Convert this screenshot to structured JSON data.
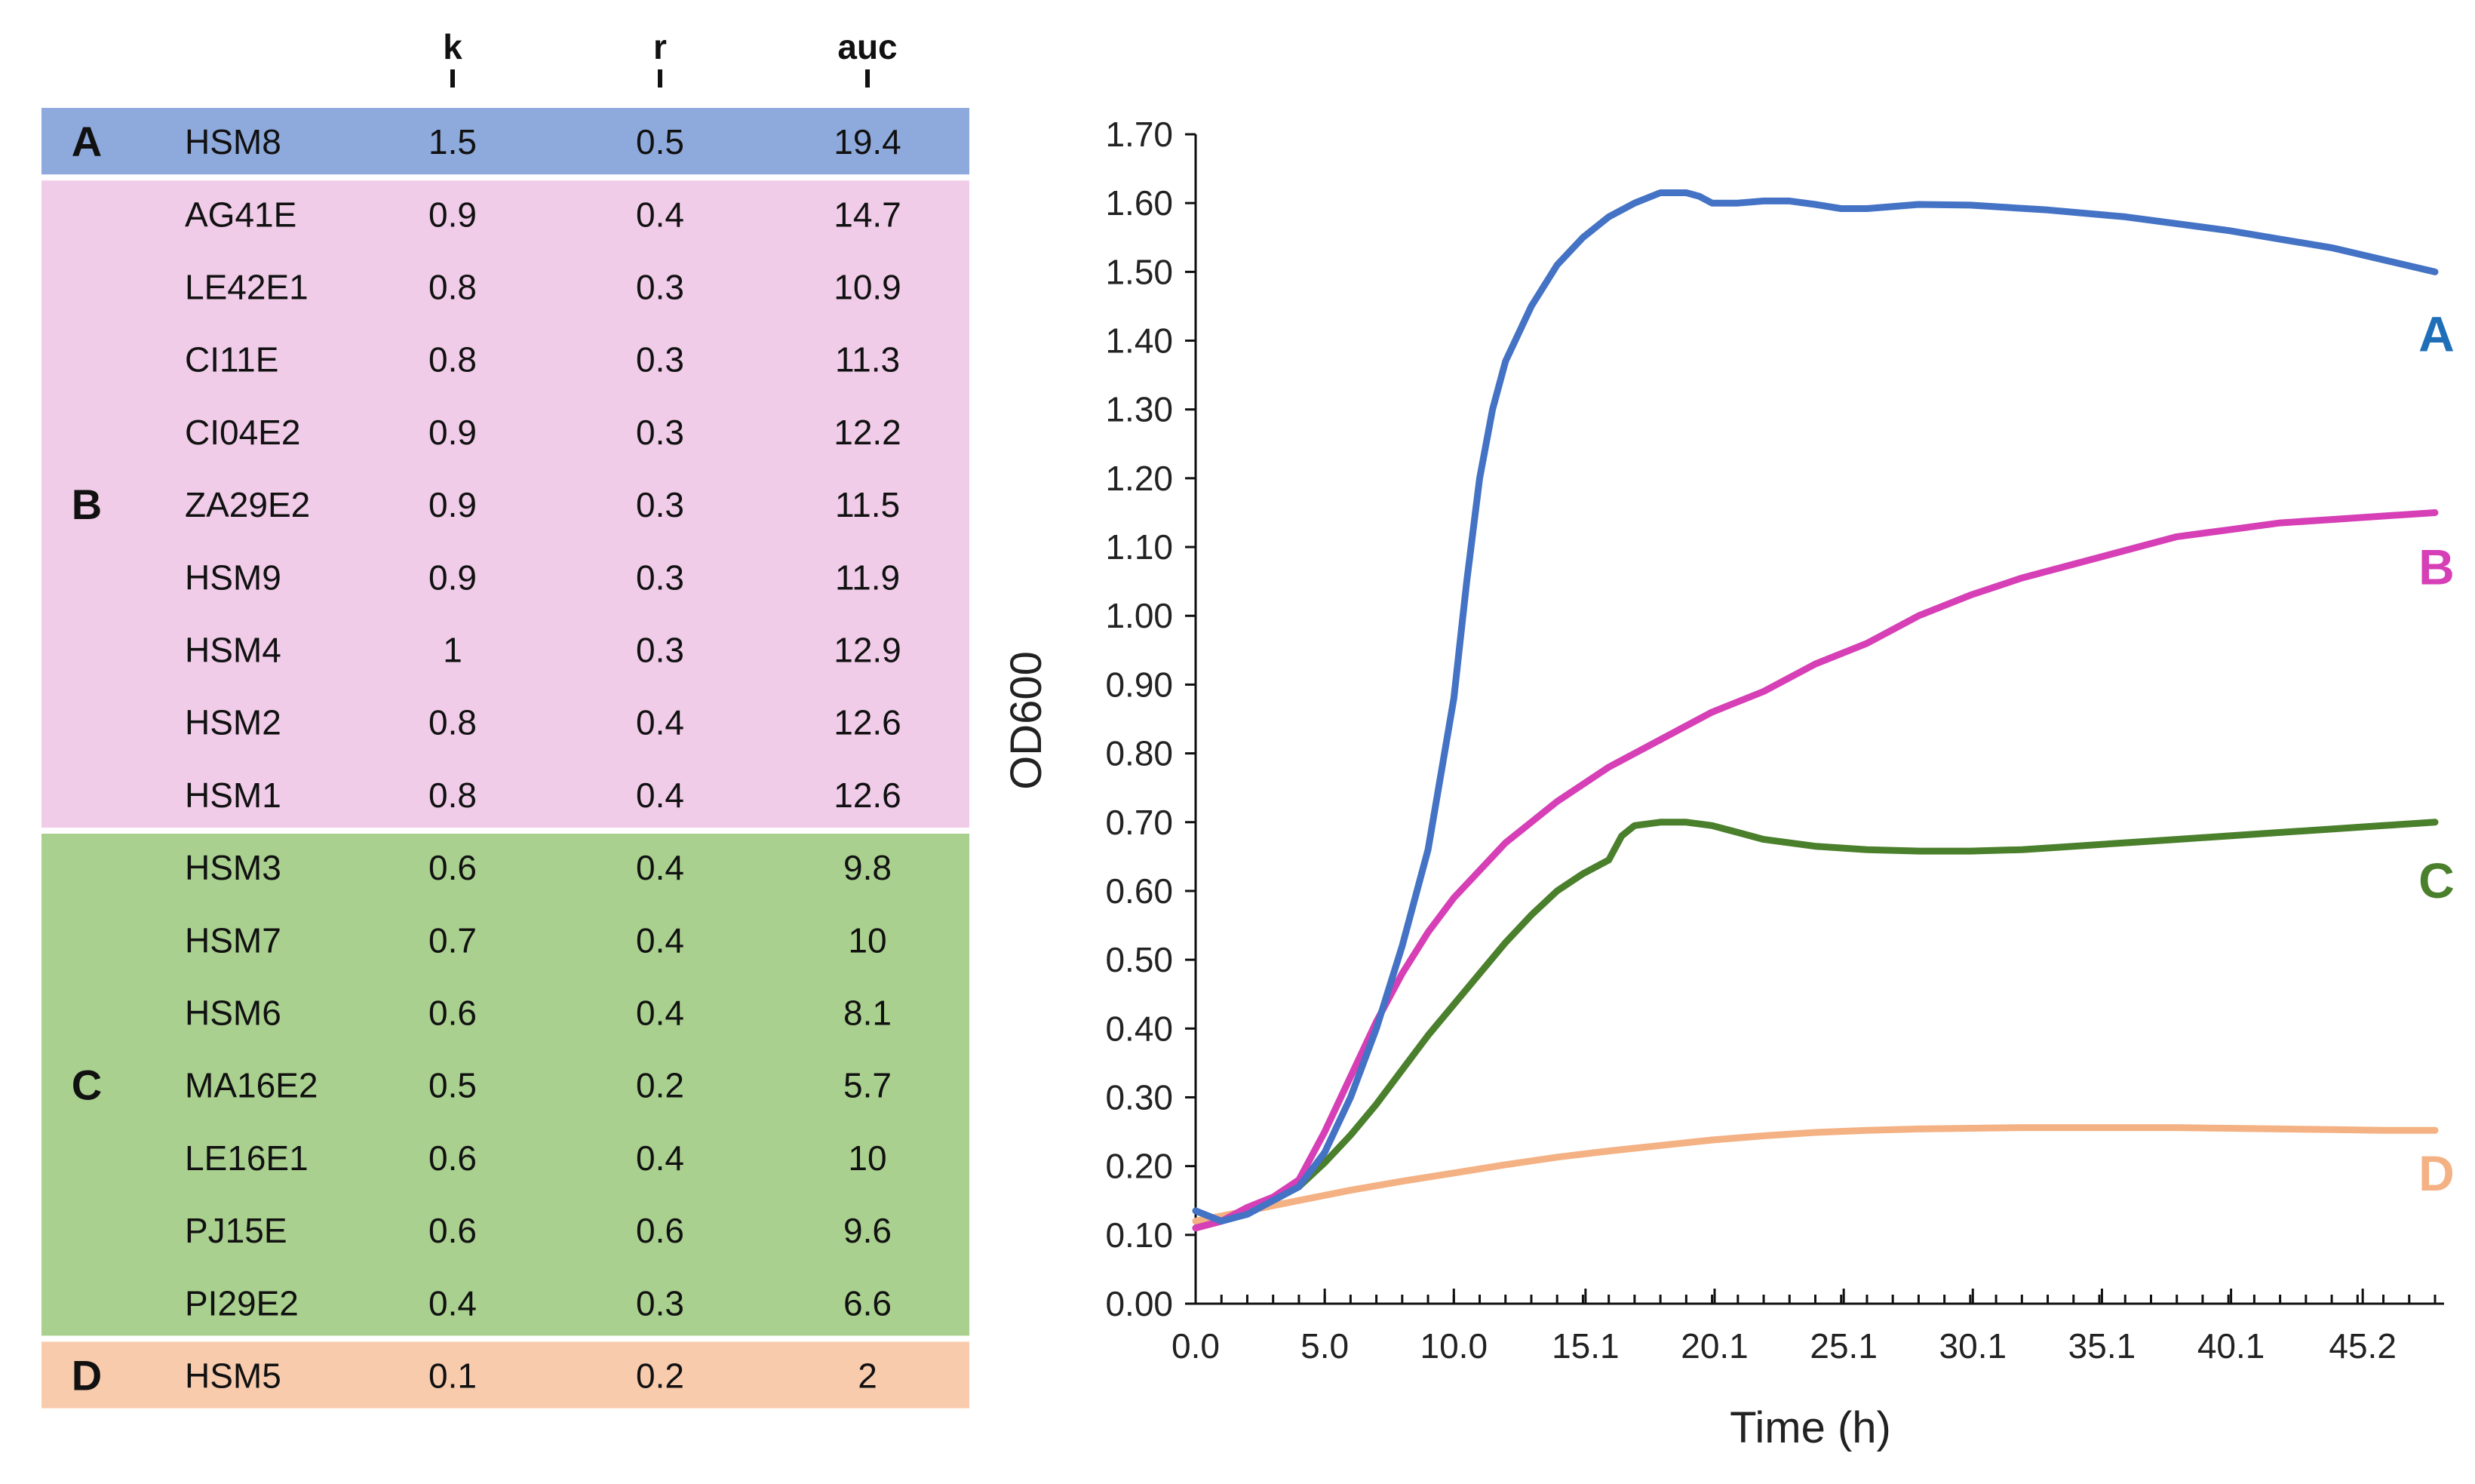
{
  "colors": {
    "A": "#8ea9db",
    "B": "#f0cce8",
    "C": "#a9d08e",
    "D": "#f8cbad",
    "line_A": "#4472c4",
    "line_B": "#d63fb6",
    "line_C": "#4a7f2c",
    "line_D": "#f4b183",
    "label_A": "#1f6fb8",
    "label_B": "#d63fb6",
    "label_C": "#4a7f2c",
    "label_D": "#f4b183"
  },
  "table": {
    "headers": [
      "k",
      "r",
      "auc"
    ],
    "groups": [
      {
        "label": "A",
        "color_key": "A",
        "rows": [
          {
            "name": "HSM8",
            "k": "1.5",
            "r": "0.5",
            "auc": "19.4"
          }
        ]
      },
      {
        "label": "B",
        "color_key": "B",
        "rows": [
          {
            "name": "AG41E",
            "k": "0.9",
            "r": "0.4",
            "auc": "14.7"
          },
          {
            "name": "LE42E1",
            "k": "0.8",
            "r": "0.3",
            "auc": "10.9"
          },
          {
            "name": "CI11E",
            "k": "0.8",
            "r": "0.3",
            "auc": "11.3"
          },
          {
            "name": "CI04E2",
            "k": "0.9",
            "r": "0.3",
            "auc": "12.2"
          },
          {
            "name": "ZA29E2",
            "k": "0.9",
            "r": "0.3",
            "auc": "11.5"
          },
          {
            "name": "HSM9",
            "k": "0.9",
            "r": "0.3",
            "auc": "11.9"
          },
          {
            "name": "HSM4",
            "k": "1",
            "r": "0.3",
            "auc": "12.9"
          },
          {
            "name": "HSM2",
            "k": "0.8",
            "r": "0.4",
            "auc": "12.6"
          },
          {
            "name": "HSM1",
            "k": "0.8",
            "r": "0.4",
            "auc": "12.6"
          }
        ]
      },
      {
        "label": "C",
        "color_key": "C",
        "rows": [
          {
            "name": "HSM3",
            "k": "0.6",
            "r": "0.4",
            "auc": "9.8"
          },
          {
            "name": "HSM7",
            "k": "0.7",
            "r": "0.4",
            "auc": "10"
          },
          {
            "name": "HSM6",
            "k": "0.6",
            "r": "0.4",
            "auc": "8.1"
          },
          {
            "name": "MA16E2",
            "k": "0.5",
            "r": "0.2",
            "auc": "5.7"
          },
          {
            "name": "LE16E1",
            "k": "0.6",
            "r": "0.4",
            "auc": "10"
          },
          {
            "name": "PJ15E",
            "k": "0.6",
            "r": "0.6",
            "auc": "9.6"
          },
          {
            "name": "PI29E2",
            "k": "0.4",
            "r": "0.3",
            "auc": "6.6"
          }
        ]
      },
      {
        "label": "D",
        "color_key": "D",
        "rows": [
          {
            "name": "HSM5",
            "k": "0.1",
            "r": "0.2",
            "auc": "2"
          }
        ]
      }
    ]
  },
  "chart_data": {
    "type": "line",
    "title": "",
    "xlabel": "Time (h)",
    "ylabel": "OD600",
    "xlim": [
      0,
      48.0
    ],
    "ylim": [
      0,
      1.7
    ],
    "xticks": [
      "0.0",
      "5.0",
      "10.0",
      "15.1",
      "20.1",
      "25.1",
      "30.1",
      "35.1",
      "40.1",
      "45.2"
    ],
    "xtick_values": [
      0,
      5.0,
      10.0,
      15.1,
      20.1,
      25.1,
      30.1,
      35.1,
      40.1,
      45.2
    ],
    "yticks": [
      "0.00",
      "0.10",
      "0.20",
      "0.30",
      "0.40",
      "0.50",
      "0.60",
      "0.70",
      "0.80",
      "0.90",
      "1.00",
      "1.10",
      "1.20",
      "1.30",
      "1.40",
      "1.50",
      "1.60",
      "1.70"
    ],
    "ytick_values": [
      0,
      0.1,
      0.2,
      0.3,
      0.4,
      0.5,
      0.6,
      0.7,
      0.8,
      0.9,
      1.0,
      1.1,
      1.2,
      1.3,
      1.4,
      1.5,
      1.6,
      1.7
    ],
    "grid": false,
    "series": [
      {
        "name": "A",
        "color_key": "line_A",
        "label_color_key": "label_A",
        "x": [
          0,
          1,
          2,
          3,
          4,
          5,
          6,
          7,
          8,
          9,
          10,
          10.5,
          11,
          11.5,
          12,
          13,
          14,
          15,
          16,
          17,
          18,
          19,
          19.5,
          20,
          21,
          22,
          23,
          24,
          25,
          26,
          28,
          30,
          33,
          36,
          40,
          44,
          48
        ],
        "y": [
          0.135,
          0.12,
          0.13,
          0.15,
          0.17,
          0.22,
          0.3,
          0.4,
          0.52,
          0.66,
          0.88,
          1.05,
          1.2,
          1.3,
          1.37,
          1.45,
          1.51,
          1.55,
          1.58,
          1.6,
          1.615,
          1.615,
          1.61,
          1.6,
          1.6,
          1.603,
          1.603,
          1.598,
          1.592,
          1.592,
          1.598,
          1.597,
          1.59,
          1.58,
          1.56,
          1.535,
          1.5
        ]
      },
      {
        "name": "B",
        "color_key": "line_B",
        "label_color_key": "label_B",
        "x": [
          0,
          1,
          2,
          3,
          4,
          5,
          6,
          7,
          8,
          9,
          10,
          12,
          14,
          16,
          18,
          20,
          22,
          24,
          26,
          28,
          30,
          32,
          34,
          36,
          38,
          40,
          42,
          44,
          46,
          48
        ],
        "y": [
          0.11,
          0.12,
          0.14,
          0.155,
          0.18,
          0.25,
          0.33,
          0.41,
          0.48,
          0.54,
          0.59,
          0.67,
          0.73,
          0.78,
          0.82,
          0.86,
          0.89,
          0.93,
          0.96,
          1.0,
          1.03,
          1.055,
          1.075,
          1.095,
          1.115,
          1.125,
          1.135,
          1.14,
          1.145,
          1.15
        ]
      },
      {
        "name": "C",
        "color_key": "line_C",
        "label_color_key": "label_C",
        "x": [
          0,
          1,
          2,
          3,
          4,
          5,
          6,
          7,
          8,
          9,
          10,
          11,
          12,
          13,
          14,
          15,
          16,
          16.5,
          17,
          18,
          19,
          20,
          21,
          22,
          24,
          26,
          28,
          30,
          32,
          34,
          36,
          38,
          40,
          42,
          44,
          46,
          48
        ],
        "y": [
          0.11,
          0.12,
          0.135,
          0.15,
          0.17,
          0.205,
          0.245,
          0.29,
          0.34,
          0.39,
          0.435,
          0.48,
          0.525,
          0.565,
          0.6,
          0.625,
          0.645,
          0.68,
          0.695,
          0.7,
          0.7,
          0.695,
          0.685,
          0.675,
          0.665,
          0.66,
          0.658,
          0.658,
          0.66,
          0.665,
          0.67,
          0.675,
          0.68,
          0.685,
          0.69,
          0.695,
          0.7
        ]
      },
      {
        "name": "D",
        "color_key": "line_D",
        "label_color_key": "label_D",
        "x": [
          0,
          2,
          4,
          6,
          8,
          10,
          12,
          14,
          16,
          18,
          20,
          22,
          24,
          26,
          28,
          30,
          32,
          34,
          36,
          38,
          40,
          42,
          44,
          46,
          48
        ],
        "y": [
          0.12,
          0.135,
          0.15,
          0.165,
          0.178,
          0.19,
          0.202,
          0.213,
          0.222,
          0.23,
          0.238,
          0.244,
          0.249,
          0.252,
          0.254,
          0.255,
          0.256,
          0.256,
          0.256,
          0.256,
          0.255,
          0.254,
          0.253,
          0.252,
          0.252
        ]
      }
    ]
  }
}
